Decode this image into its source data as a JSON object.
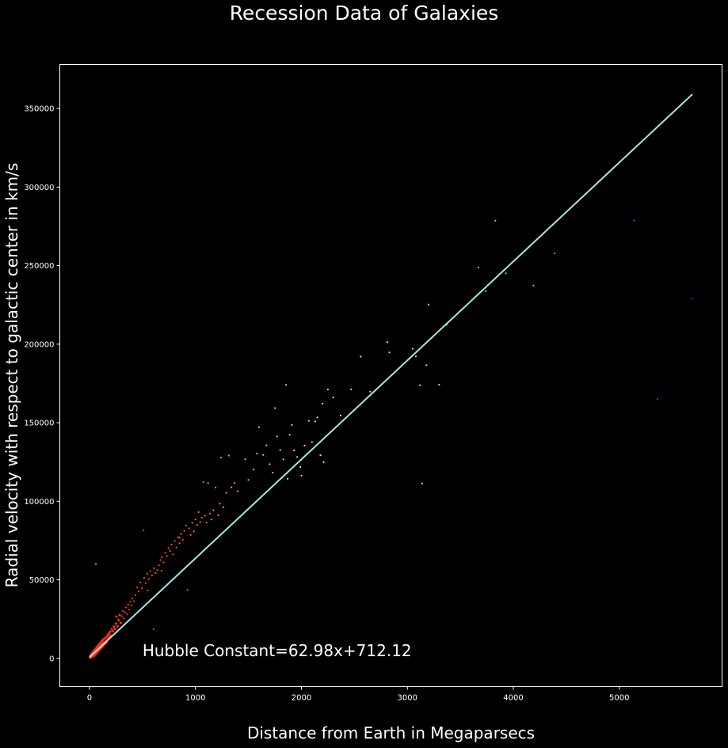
{
  "chart_data": {
    "type": "scatter",
    "title": "Recession Data of Galaxies",
    "xlabel": "Distance from Earth in Megaparsecs",
    "ylabel": "Radial velocity with respect to galactic center in km/s",
    "xlim": [
      -280,
      5970
    ],
    "ylim": [
      -18000,
      378000
    ],
    "xticks": [
      0,
      1000,
      2000,
      3000,
      4000,
      5000
    ],
    "yticks": [
      0,
      50000,
      100000,
      150000,
      200000,
      250000,
      300000,
      350000
    ],
    "grid": false,
    "annotation": {
      "text": "Hubble Constant=62.98x+712.12",
      "x": 500,
      "y": 1500
    },
    "fit_line": {
      "slope": 62.98,
      "intercept": 712.12,
      "x_range": [
        0,
        5690
      ],
      "color": "#a8e6e0"
    },
    "colors": {
      "background": "#000000",
      "axes": "#ffffff",
      "near": "#ff2a1a",
      "far": "#2244ff"
    },
    "points": [
      [
        5,
        300
      ],
      [
        8,
        900
      ],
      [
        10,
        1400
      ],
      [
        12,
        2200
      ],
      [
        15,
        600
      ],
      [
        18,
        1800
      ],
      [
        20,
        3000
      ],
      [
        22,
        900
      ],
      [
        25,
        2400
      ],
      [
        28,
        1200
      ],
      [
        30,
        3600
      ],
      [
        32,
        2000
      ],
      [
        35,
        4100
      ],
      [
        38,
        2700
      ],
      [
        40,
        1500
      ],
      [
        42,
        4800
      ],
      [
        45,
        3200
      ],
      [
        48,
        2100
      ],
      [
        50,
        5400
      ],
      [
        52,
        3900
      ],
      [
        55,
        2600
      ],
      [
        58,
        6000
      ],
      [
        60,
        4300
      ],
      [
        62,
        3000
      ],
      [
        65,
        6700
      ],
      [
        68,
        5100
      ],
      [
        70,
        3600
      ],
      [
        72,
        7300
      ],
      [
        75,
        5500
      ],
      [
        78,
        4200
      ],
      [
        80,
        8000
      ],
      [
        82,
        6100
      ],
      [
        85,
        4700
      ],
      [
        88,
        8600
      ],
      [
        90,
        6600
      ],
      [
        92,
        5200
      ],
      [
        95,
        9200
      ],
      [
        98,
        7200
      ],
      [
        100,
        5900
      ],
      [
        102,
        9800
      ],
      [
        105,
        7800
      ],
      [
        108,
        6400
      ],
      [
        110,
        10400
      ],
      [
        112,
        8300
      ],
      [
        115,
        7000
      ],
      [
        118,
        11000
      ],
      [
        120,
        8900
      ],
      [
        122,
        7500
      ],
      [
        125,
        11600
      ],
      [
        128,
        9500
      ],
      [
        130,
        8000
      ],
      [
        135,
        12400
      ],
      [
        140,
        10300
      ],
      [
        145,
        9000
      ],
      [
        150,
        13100
      ],
      [
        155,
        11200
      ],
      [
        160,
        10000
      ],
      [
        165,
        14000
      ],
      [
        170,
        12100
      ],
      [
        175,
        15000
      ],
      [
        180,
        12800
      ],
      [
        185,
        16100
      ],
      [
        190,
        13600
      ],
      [
        195,
        17000
      ],
      [
        200,
        14600
      ],
      [
        60,
        60000
      ],
      [
        210,
        18500
      ],
      [
        220,
        17200
      ],
      [
        230,
        20200
      ],
      [
        240,
        18700
      ],
      [
        250,
        22100
      ],
      [
        255,
        26500
      ],
      [
        265,
        20400
      ],
      [
        275,
        24300
      ],
      [
        285,
        27700
      ],
      [
        295,
        22600
      ],
      [
        305,
        26900
      ],
      [
        315,
        30100
      ],
      [
        325,
        25400
      ],
      [
        335,
        29300
      ],
      [
        345,
        32400
      ],
      [
        355,
        28100
      ],
      [
        365,
        34200
      ],
      [
        375,
        31100
      ],
      [
        385,
        36200
      ],
      [
        395,
        33800
      ],
      [
        405,
        38100
      ],
      [
        420,
        36400
      ],
      [
        435,
        40200
      ],
      [
        450,
        45100
      ],
      [
        465,
        42600
      ],
      [
        480,
        48300
      ],
      [
        495,
        44700
      ],
      [
        510,
        81500
      ],
      [
        515,
        51200
      ],
      [
        530,
        47800
      ],
      [
        545,
        53800
      ],
      [
        560,
        50600
      ],
      [
        575,
        55600
      ],
      [
        590,
        52800
      ],
      [
        605,
        18500
      ],
      [
        610,
        57400
      ],
      [
        625,
        54300
      ],
      [
        640,
        56200
      ],
      [
        655,
        59300
      ],
      [
        670,
        62600
      ],
      [
        685,
        64400
      ],
      [
        700,
        61200
      ],
      [
        715,
        67300
      ],
      [
        730,
        65100
      ],
      [
        745,
        70100
      ],
      [
        760,
        68400
      ],
      [
        775,
        72500
      ],
      [
        790,
        66200
      ],
      [
        805,
        74800
      ],
      [
        820,
        70600
      ],
      [
        835,
        77100
      ],
      [
        850,
        73300
      ],
      [
        865,
        79200
      ],
      [
        880,
        75500
      ],
      [
        895,
        81100
      ],
      [
        910,
        84600
      ],
      [
        925,
        43600
      ],
      [
        940,
        82800
      ],
      [
        955,
        78600
      ],
      [
        970,
        86300
      ],
      [
        985,
        80800
      ],
      [
        1000,
        88400
      ],
      [
        1015,
        84900
      ],
      [
        1030,
        93100
      ],
      [
        1045,
        86800
      ],
      [
        1060,
        89600
      ],
      [
        1075,
        112200
      ],
      [
        1090,
        90800
      ],
      [
        1105,
        86500
      ],
      [
        1120,
        111600
      ],
      [
        1135,
        92200
      ],
      [
        1150,
        88400
      ],
      [
        1170,
        94300
      ],
      [
        1190,
        108800
      ],
      [
        1215,
        91100
      ],
      [
        1240,
        127800
      ],
      [
        1265,
        96200
      ],
      [
        1290,
        105400
      ],
      [
        1315,
        129100
      ],
      [
        1340,
        108900
      ],
      [
        1370,
        111600
      ],
      [
        1400,
        106300
      ],
      [
        1470,
        126800
      ],
      [
        1500,
        113600
      ],
      [
        1550,
        120200
      ],
      [
        1600,
        147200
      ],
      [
        1640,
        129500
      ],
      [
        1670,
        135600
      ],
      [
        1700,
        123600
      ],
      [
        1730,
        118200
      ],
      [
        1750,
        159300
      ],
      [
        1770,
        141300
      ],
      [
        1800,
        132600
      ],
      [
        1830,
        126700
      ],
      [
        1855,
        174100
      ],
      [
        1870,
        114300
      ],
      [
        1890,
        142300
      ],
      [
        1910,
        148600
      ],
      [
        1930,
        132400
      ],
      [
        1960,
        128200
      ],
      [
        2000,
        116300
      ],
      [
        2030,
        135500
      ],
      [
        2070,
        151200
      ],
      [
        2100,
        137700
      ],
      [
        2130,
        150800
      ],
      [
        2150,
        153400
      ],
      [
        2180,
        129300
      ],
      [
        2200,
        162200
      ],
      [
        2210,
        124900
      ],
      [
        2250,
        171200
      ],
      [
        2300,
        166100
      ],
      [
        2470,
        171200
      ],
      [
        2560,
        192100
      ],
      [
        2810,
        201300
      ],
      [
        2830,
        194700
      ],
      [
        3050,
        197100
      ],
      [
        3080,
        192200
      ],
      [
        3120,
        173900
      ],
      [
        3140,
        111300
      ],
      [
        3180,
        186600
      ],
      [
        3200,
        225200
      ],
      [
        3300,
        174200
      ],
      [
        3670,
        248800
      ],
      [
        3740,
        233700
      ],
      [
        3830,
        278600
      ],
      [
        3930,
        245100
      ],
      [
        4190,
        237300
      ],
      [
        4390,
        257800
      ],
      [
        5140,
        278700
      ],
      [
        5360,
        165000
      ],
      [
        5690,
        229000
      ],
      [
        550,
        43200
      ],
      [
        680,
        55800
      ],
      [
        850,
        76800
      ],
      [
        1230,
        98500
      ],
      [
        1580,
        130300
      ],
      [
        1990,
        121800
      ],
      [
        2370,
        154600
      ],
      [
        2650,
        169800
      ],
      [
        3370,
        212300
      ]
    ]
  }
}
